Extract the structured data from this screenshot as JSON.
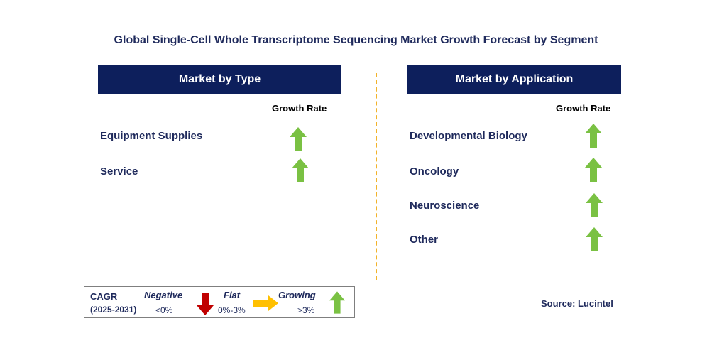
{
  "title": "Global Single-Cell Whole Transcriptome Sequencing Market Growth Forecast by Segment",
  "colors": {
    "header_bg": "#0d1f5c",
    "up_arrow": "#7ac143",
    "down_arrow": "#c00000",
    "flat_arrow": "#ffc000",
    "divider": "#f2b32b"
  },
  "left_panel": {
    "header": "Market by Type",
    "growth_label": "Growth Rate",
    "items": [
      {
        "label": "Equipment Supplies",
        "trend": "up-arrow-icon"
      },
      {
        "label": "Service",
        "trend": "up-arrow-icon"
      }
    ]
  },
  "right_panel": {
    "header": "Market by Application",
    "growth_label": "Growth Rate",
    "items": [
      {
        "label": "Developmental Biology",
        "trend": "up-arrow-icon"
      },
      {
        "label": "Oncology",
        "trend": "up-arrow-icon"
      },
      {
        "label": "Neuroscience",
        "trend": "up-arrow-icon"
      },
      {
        "label": "Other",
        "trend": "up-arrow-icon"
      }
    ]
  },
  "legend": {
    "cagr": "CAGR",
    "period": "(2025-2031)",
    "negative": "Negative",
    "negative_range": "<0%",
    "flat": "Flat",
    "flat_range": "0%-3%",
    "growing": "Growing",
    "growing_range": ">3%"
  },
  "source": "Source: Lucintel"
}
